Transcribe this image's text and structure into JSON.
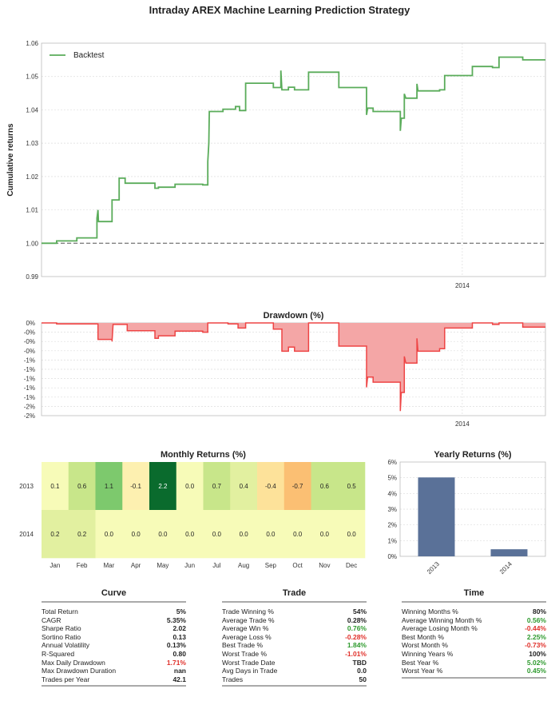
{
  "title": "Intraday AREX Machine Learning Prediction Strategy",
  "colors": {
    "backtest": "#5aac5a",
    "drawdown_fill": "#f4a6a6",
    "drawdown_line": "#ee4444",
    "yearly_bar": "#5a7198"
  },
  "chart_data": [
    {
      "type": "line",
      "ylabel": "Cumulative returns",
      "ylim": [
        0.99,
        1.06
      ],
      "yticks": [
        "0.99",
        "1.00",
        "1.01",
        "1.02",
        "1.03",
        "1.04",
        "1.05",
        "1.06"
      ],
      "xtick_labels": [
        {
          "label": "2014",
          "t": 0.835
        }
      ],
      "baseline": 1.0,
      "legend": "top-left",
      "series": [
        {
          "name": "Backtest",
          "points": [
            [
              0.0,
              1.0
            ],
            [
              0.03,
              1.0
            ],
            [
              0.03,
              1.0007
            ],
            [
              0.07,
              1.0007
            ],
            [
              0.07,
              1.0016
            ],
            [
              0.11,
              1.0016
            ],
            [
              0.11,
              1.0075
            ],
            [
              0.112,
              1.01
            ],
            [
              0.113,
              1.0065
            ],
            [
              0.14,
              1.0065
            ],
            [
              0.14,
              1.013
            ],
            [
              0.154,
              1.013
            ],
            [
              0.154,
              1.0195
            ],
            [
              0.166,
              1.0195
            ],
            [
              0.166,
              1.018
            ],
            [
              0.225,
              1.018
            ],
            [
              0.225,
              1.0165
            ],
            [
              0.232,
              1.0165
            ],
            [
              0.232,
              1.0168
            ],
            [
              0.265,
              1.0168
            ],
            [
              0.265,
              1.0177
            ],
            [
              0.32,
              1.0177
            ],
            [
              0.32,
              1.0175
            ],
            [
              0.33,
              1.0175
            ],
            [
              0.33,
              1.0245
            ],
            [
              0.332,
              1.03
            ],
            [
              0.333,
              1.0395
            ],
            [
              0.36,
              1.0395
            ],
            [
              0.36,
              1.0402
            ],
            [
              0.385,
              1.0402
            ],
            [
              0.385,
              1.041
            ],
            [
              0.393,
              1.041
            ],
            [
              0.393,
              1.0398
            ],
            [
              0.405,
              1.0398
            ],
            [
              0.405,
              1.048
            ],
            [
              0.46,
              1.048
            ],
            [
              0.46,
              1.0467
            ],
            [
              0.475,
              1.0467
            ],
            [
              0.475,
              1.0518
            ],
            [
              0.477,
              1.046
            ],
            [
              0.49,
              1.046
            ],
            [
              0.49,
              1.0468
            ],
            [
              0.502,
              1.0468
            ],
            [
              0.502,
              1.046
            ],
            [
              0.53,
              1.046
            ],
            [
              0.53,
              1.0513
            ],
            [
              0.59,
              1.0513
            ],
            [
              0.59,
              1.0467
            ],
            [
              0.645,
              1.0467
            ],
            [
              0.645,
              1.0385
            ],
            [
              0.647,
              1.0405
            ],
            [
              0.658,
              1.0405
            ],
            [
              0.658,
              1.0395
            ],
            [
              0.712,
              1.0395
            ],
            [
              0.712,
              1.0337
            ],
            [
              0.714,
              1.0375
            ],
            [
              0.72,
              1.0375
            ],
            [
              0.72,
              1.0448
            ],
            [
              0.723,
              1.0435
            ],
            [
              0.745,
              1.0435
            ],
            [
              0.745,
              1.0478
            ],
            [
              0.747,
              1.0457
            ],
            [
              0.79,
              1.0457
            ],
            [
              0.79,
              1.046
            ],
            [
              0.8,
              1.046
            ],
            [
              0.8,
              1.0503
            ],
            [
              0.855,
              1.0503
            ],
            [
              0.855,
              1.053
            ],
            [
              0.895,
              1.053
            ],
            [
              0.895,
              1.0527
            ],
            [
              0.908,
              1.0527
            ],
            [
              0.908,
              1.0558
            ],
            [
              0.955,
              1.0558
            ],
            [
              0.955,
              1.055
            ],
            [
              1.0,
              1.055
            ]
          ]
        }
      ]
    },
    {
      "type": "area",
      "title": "Drawdown (%)",
      "ylim": [
        -1.8,
        0
      ],
      "yticks": [
        "0%",
        "-0%",
        "-0%",
        "-0%",
        "-1%",
        "-1%",
        "-1%",
        "-1%",
        "-1%",
        "-2%",
        "-2%"
      ],
      "xtick_labels": [
        {
          "label": "2014",
          "t": 0.835
        }
      ],
      "series": [
        {
          "name": "Drawdown",
          "points": [
            [
              0.0,
              0.0
            ],
            [
              0.03,
              0.0
            ],
            [
              0.03,
              -0.02
            ],
            [
              0.112,
              -0.02
            ],
            [
              0.112,
              -0.32
            ],
            [
              0.14,
              -0.32
            ],
            [
              0.14,
              -0.36
            ],
            [
              0.142,
              -0.03
            ],
            [
              0.17,
              -0.03
            ],
            [
              0.17,
              -0.15
            ],
            [
              0.225,
              -0.15
            ],
            [
              0.225,
              -0.3
            ],
            [
              0.232,
              -0.3
            ],
            [
              0.232,
              -0.25
            ],
            [
              0.265,
              -0.25
            ],
            [
              0.265,
              -0.16
            ],
            [
              0.32,
              -0.16
            ],
            [
              0.32,
              -0.18
            ],
            [
              0.33,
              -0.18
            ],
            [
              0.33,
              0.0
            ],
            [
              0.37,
              0.0
            ],
            [
              0.37,
              -0.02
            ],
            [
              0.39,
              -0.02
            ],
            [
              0.39,
              -0.1
            ],
            [
              0.405,
              -0.1
            ],
            [
              0.405,
              0.0
            ],
            [
              0.46,
              0.0
            ],
            [
              0.46,
              -0.12
            ],
            [
              0.477,
              -0.12
            ],
            [
              0.477,
              -0.55
            ],
            [
              0.49,
              -0.55
            ],
            [
              0.49,
              -0.47
            ],
            [
              0.502,
              -0.47
            ],
            [
              0.502,
              -0.55
            ],
            [
              0.53,
              -0.55
            ],
            [
              0.53,
              0.0
            ],
            [
              0.59,
              0.0
            ],
            [
              0.59,
              -0.45
            ],
            [
              0.645,
              -0.45
            ],
            [
              0.645,
              -1.25
            ],
            [
              0.647,
              -1.05
            ],
            [
              0.658,
              -1.05
            ],
            [
              0.658,
              -1.15
            ],
            [
              0.712,
              -1.15
            ],
            [
              0.712,
              -1.71
            ],
            [
              0.714,
              -1.35
            ],
            [
              0.72,
              -1.35
            ],
            [
              0.72,
              -0.65
            ],
            [
              0.723,
              -0.78
            ],
            [
              0.745,
              -0.78
            ],
            [
              0.745,
              -0.3
            ],
            [
              0.747,
              -0.55
            ],
            [
              0.79,
              -0.55
            ],
            [
              0.79,
              -0.5
            ],
            [
              0.8,
              -0.5
            ],
            [
              0.8,
              -0.1
            ],
            [
              0.855,
              -0.1
            ],
            [
              0.855,
              0.0
            ],
            [
              0.895,
              0.0
            ],
            [
              0.895,
              -0.03
            ],
            [
              0.908,
              -0.03
            ],
            [
              0.908,
              0.0
            ],
            [
              0.955,
              0.0
            ],
            [
              0.955,
              -0.08
            ],
            [
              1.0,
              -0.08
            ]
          ]
        }
      ]
    },
    {
      "type": "heatmap",
      "title": "Monthly Returns (%)",
      "columns": [
        "Jan",
        "Feb",
        "Mar",
        "Apr",
        "May",
        "Jun",
        "Jul",
        "Aug",
        "Sep",
        "Oct",
        "Nov",
        "Dec"
      ],
      "rows": [
        "2013",
        "2014"
      ],
      "values": [
        [
          0.1,
          0.6,
          1.1,
          -0.1,
          2.2,
          0.0,
          0.7,
          0.4,
          -0.4,
          -0.7,
          0.6,
          0.5
        ],
        [
          0.2,
          0.2,
          0.0,
          0.0,
          0.0,
          0.0,
          0.0,
          0.0,
          0.0,
          0.0,
          0.0,
          0.0
        ]
      ],
      "labels": [
        [
          "0.1",
          "0.6",
          "1.1",
          "-0.1",
          "2.2",
          "0.0",
          "0.7",
          "0.4",
          "-0.4",
          "-0.7",
          "0.6",
          "0.5"
        ],
        [
          "0.2",
          "0.2",
          "0.0",
          "0.0",
          "0.0",
          "0.0",
          "0.0",
          "0.0",
          "0.0",
          "0.0",
          "0.0",
          "0.0"
        ]
      ]
    },
    {
      "type": "bar",
      "title": "Yearly Returns (%)",
      "categories": [
        "2013",
        "2014"
      ],
      "values": [
        5.02,
        0.45
      ],
      "ylim": [
        0,
        6
      ],
      "yticks": [
        "0%",
        "1%",
        "2%",
        "3%",
        "4%",
        "5%",
        "6%"
      ]
    }
  ],
  "stats": {
    "curve": {
      "title": "Curve",
      "rows": [
        {
          "label": "Total Return",
          "value": "5%",
          "tone": ""
        },
        {
          "label": "CAGR",
          "value": "5.35%",
          "tone": ""
        },
        {
          "label": "Sharpe Ratio",
          "value": "2.02",
          "tone": ""
        },
        {
          "label": "Sortino Ratio",
          "value": "0.13",
          "tone": ""
        },
        {
          "label": "Annual Volatility",
          "value": "0.13%",
          "tone": ""
        },
        {
          "label": "R-Squared",
          "value": "0.80",
          "tone": ""
        },
        {
          "label": "Max Daily Drawdown",
          "value": "1.71%",
          "tone": "neg"
        },
        {
          "label": "Max Drawdown Duration",
          "value": "nan",
          "tone": ""
        },
        {
          "label": "Trades per Year",
          "value": "42.1",
          "tone": ""
        }
      ]
    },
    "trade": {
      "title": "Trade",
      "rows": [
        {
          "label": "Trade Winning %",
          "value": "54%",
          "tone": ""
        },
        {
          "label": "Average Trade %",
          "value": "0.28%",
          "tone": ""
        },
        {
          "label": "Average Win %",
          "value": "0.76%",
          "tone": "pos"
        },
        {
          "label": "Average Loss %",
          "value": "-0.28%",
          "tone": "neg"
        },
        {
          "label": "Best Trade %",
          "value": "1.84%",
          "tone": "pos"
        },
        {
          "label": "Worst Trade %",
          "value": "-1.01%",
          "tone": "neg"
        },
        {
          "label": "Worst Trade Date",
          "value": "TBD",
          "tone": ""
        },
        {
          "label": "Avg Days in Trade",
          "value": "0.0",
          "tone": ""
        },
        {
          "label": "Trades",
          "value": "50",
          "tone": ""
        }
      ]
    },
    "time": {
      "title": "Time",
      "rows": [
        {
          "label": "Winning Months %",
          "value": "80%",
          "tone": ""
        },
        {
          "label": "Average Winning Month %",
          "value": "0.56%",
          "tone": "pos"
        },
        {
          "label": "Average Losing Month %",
          "value": "-0.44%",
          "tone": "neg"
        },
        {
          "label": "Best Month %",
          "value": "2.25%",
          "tone": "pos"
        },
        {
          "label": "Worst Month %",
          "value": "-0.73%",
          "tone": "neg"
        },
        {
          "label": "Winning Years %",
          "value": "100%",
          "tone": ""
        },
        {
          "label": "Best Year %",
          "value": "5.02%",
          "tone": "pos"
        },
        {
          "label": "Worst Year %",
          "value": "0.45%",
          "tone": "pos"
        }
      ]
    }
  }
}
